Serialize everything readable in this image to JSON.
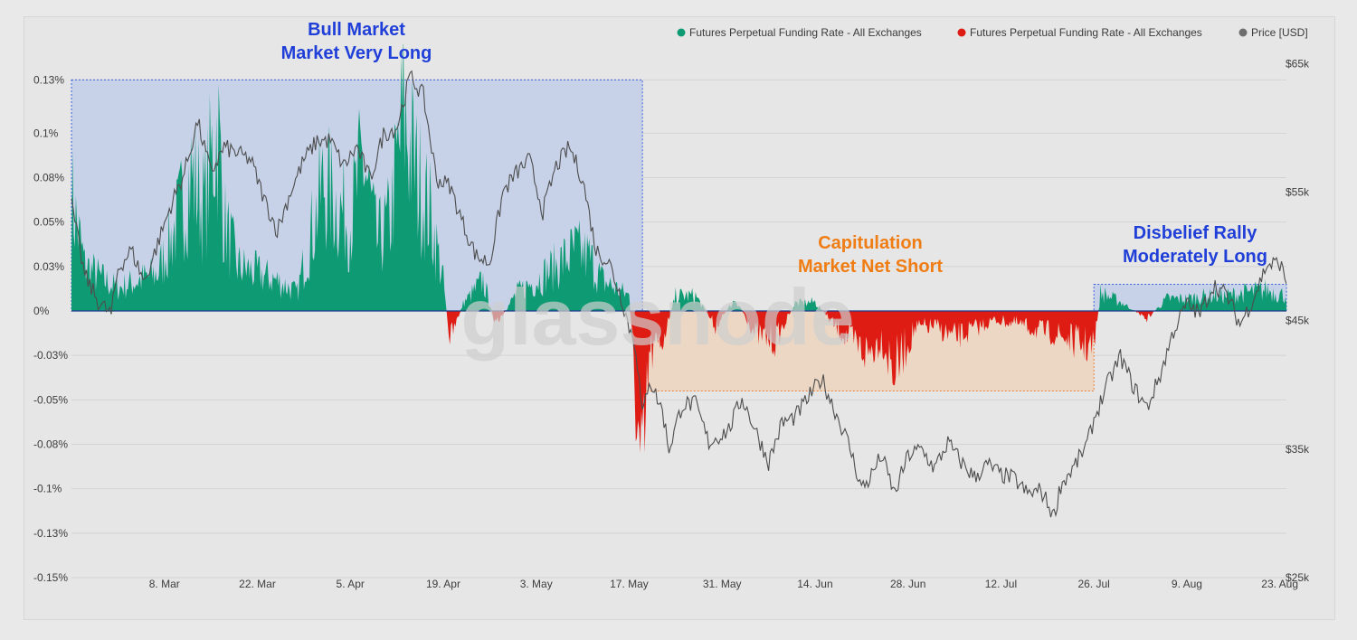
{
  "colors": {
    "green": "#0e9b73",
    "red": "#df1c14",
    "price": "#4d4d4d",
    "bull_box_fill": "#c5d1e8",
    "bull_box_border": "#3a62d8",
    "cap_box_fill": "#ecd6c3",
    "cap_box_border": "#e8843a",
    "bull_text": "#1f3fd8",
    "cap_text": "#f07d14",
    "watermark": "#cfcfcf"
  },
  "watermark": "glassnode",
  "legend": [
    {
      "label": "Futures Perpetual Funding Rate - All Exchanges",
      "color": "#0e9b73",
      "icon": "dot-icon"
    },
    {
      "label": "Futures Perpetual Funding Rate - All Exchanges",
      "color": "#df1c14",
      "icon": "dot-icon"
    },
    {
      "label": "Price [USD]",
      "color": "#6e6e6e",
      "icon": "dot-icon"
    }
  ],
  "annotations": {
    "bull": [
      "Bull Market",
      "Market Very Long"
    ],
    "capitulation": [
      "Capitulation",
      "Market Net Short"
    ],
    "disbelief": [
      "Disbelief Rally",
      "Moderately Long"
    ]
  },
  "chart_data": {
    "type": "area",
    "left_axis": {
      "tick_values": [
        0.13,
        0.1,
        0.075,
        0.05,
        0.025,
        0,
        -0.025,
        -0.05,
        -0.075,
        -0.1,
        -0.125,
        -0.15
      ],
      "tick_labels": [
        "0.13%",
        "0.1%",
        "0.08%",
        "0.05%",
        "0.03%",
        "0%",
        "-0.03%",
        "-0.05%",
        "-0.08%",
        "-0.1%",
        "-0.13%",
        "-0.15%"
      ],
      "range": [
        -0.15,
        0.15
      ]
    },
    "right_axis": {
      "tick_values": [
        65000,
        55000,
        45000,
        35000,
        25000
      ],
      "tick_labels": [
        "$65k",
        "$55k",
        "$45k",
        "$35k",
        "$25k"
      ],
      "range": [
        25000,
        66500
      ]
    },
    "x_axis": {
      "start": "2021-02-22",
      "end": "2021-08-24",
      "tick_labels": [
        "8. Mar",
        "22. Mar",
        "5. Apr",
        "19. Apr",
        "3. May",
        "17. May",
        "31. May",
        "14. Jun",
        "28. Jun",
        "12. Jul",
        "26. Jul",
        "9. Aug",
        "23. Aug"
      ]
    },
    "annotation_periods": [
      {
        "label": "Bull Market",
        "from": "2021-02-22",
        "to": "2021-05-19",
        "funding_range": [
          0,
          0.13
        ]
      },
      {
        "label": "Capitulation",
        "from": "2021-05-19",
        "to": "2021-07-26",
        "funding_range": [
          -0.045,
          0
        ]
      },
      {
        "label": "Disbelief Rally",
        "from": "2021-07-26",
        "to": "2021-08-24",
        "funding_range": [
          0,
          0.015
        ]
      }
    ],
    "funding_rate_pct": [
      [
        "2021-02-22",
        0.075
      ],
      [
        "2021-02-24",
        0.03
      ],
      [
        "2021-02-27",
        0.02
      ],
      [
        "2021-03-01",
        0.015
      ],
      [
        "2021-03-04",
        0.02
      ],
      [
        "2021-03-07",
        0.025
      ],
      [
        "2021-03-10",
        0.06
      ],
      [
        "2021-03-12",
        0.09
      ],
      [
        "2021-03-14",
        0.07
      ],
      [
        "2021-03-16",
        0.125
      ],
      [
        "2021-03-17",
        0.06
      ],
      [
        "2021-03-19",
        0.03
      ],
      [
        "2021-03-22",
        0.025
      ],
      [
        "2021-03-25",
        0.02
      ],
      [
        "2021-03-28",
        0.012
      ],
      [
        "2021-03-30",
        0.05
      ],
      [
        "2021-04-01",
        0.085
      ],
      [
        "2021-04-03",
        0.07
      ],
      [
        "2021-04-05",
        0.06
      ],
      [
        "2021-04-07",
        0.1
      ],
      [
        "2021-04-09",
        0.045
      ],
      [
        "2021-04-11",
        0.06
      ],
      [
        "2021-04-13",
        0.13
      ],
      [
        "2021-04-15",
        0.09
      ],
      [
        "2021-04-17",
        0.065
      ],
      [
        "2021-04-19",
        0.02
      ],
      [
        "2021-04-20",
        -0.02
      ],
      [
        "2021-04-22",
        0.005
      ],
      [
        "2021-04-25",
        0.02
      ],
      [
        "2021-04-27",
        -0.01
      ],
      [
        "2021-04-30",
        0.012
      ],
      [
        "2021-05-03",
        0.02
      ],
      [
        "2021-05-06",
        0.03
      ],
      [
        "2021-05-09",
        0.04
      ],
      [
        "2021-05-11",
        0.035
      ],
      [
        "2021-05-13",
        0.02
      ],
      [
        "2021-05-15",
        0.015
      ],
      [
        "2021-05-17",
        0.01
      ],
      [
        "2021-05-19",
        -0.13
      ],
      [
        "2021-05-20",
        -0.03
      ],
      [
        "2021-05-22",
        -0.02
      ],
      [
        "2021-05-24",
        0.01
      ],
      [
        "2021-05-27",
        0.01
      ],
      [
        "2021-05-30",
        -0.01
      ],
      [
        "2021-06-02",
        0.008
      ],
      [
        "2021-06-05",
        -0.015
      ],
      [
        "2021-06-08",
        -0.02
      ],
      [
        "2021-06-11",
        0.005
      ],
      [
        "2021-06-14",
        0.006
      ],
      [
        "2021-06-17",
        -0.01
      ],
      [
        "2021-06-20",
        -0.022
      ],
      [
        "2021-06-22",
        -0.028
      ],
      [
        "2021-06-24",
        -0.018
      ],
      [
        "2021-06-26",
        -0.04
      ],
      [
        "2021-06-29",
        -0.012
      ],
      [
        "2021-07-02",
        -0.01
      ],
      [
        "2021-07-05",
        -0.018
      ],
      [
        "2021-07-08",
        -0.012
      ],
      [
        "2021-07-11",
        -0.006
      ],
      [
        "2021-07-14",
        -0.008
      ],
      [
        "2021-07-17",
        -0.012
      ],
      [
        "2021-07-20",
        -0.015
      ],
      [
        "2021-07-23",
        -0.02
      ],
      [
        "2021-07-26",
        -0.025
      ],
      [
        "2021-07-27",
        0.012
      ],
      [
        "2021-07-30",
        0.006
      ],
      [
        "2021-08-03",
        -0.005
      ],
      [
        "2021-08-06",
        0.008
      ],
      [
        "2021-08-09",
        0.008
      ],
      [
        "2021-08-12",
        0.01
      ],
      [
        "2021-08-15",
        0.01
      ],
      [
        "2021-08-18",
        0.012
      ],
      [
        "2021-08-21",
        0.014
      ],
      [
        "2021-08-24",
        0.01
      ]
    ],
    "price_usd": [
      [
        "2021-02-22",
        54000
      ],
      [
        "2021-02-24",
        48500
      ],
      [
        "2021-02-26",
        46500
      ],
      [
        "2021-02-28",
        45500
      ],
      [
        "2021-03-01",
        49000
      ],
      [
        "2021-03-03",
        50500
      ],
      [
        "2021-03-05",
        48000
      ],
      [
        "2021-03-07",
        51000
      ],
      [
        "2021-03-09",
        54000
      ],
      [
        "2021-03-11",
        56500
      ],
      [
        "2021-03-13",
        60500
      ],
      [
        "2021-03-15",
        56500
      ],
      [
        "2021-03-17",
        58500
      ],
      [
        "2021-03-19",
        58000
      ],
      [
        "2021-03-21",
        57500
      ],
      [
        "2021-03-23",
        54500
      ],
      [
        "2021-03-25",
        52000
      ],
      [
        "2021-03-27",
        55000
      ],
      [
        "2021-03-29",
        57500
      ],
      [
        "2021-03-31",
        59000
      ],
      [
        "2021-04-02",
        59000
      ],
      [
        "2021-04-04",
        57000
      ],
      [
        "2021-04-06",
        58500
      ],
      [
        "2021-04-08",
        56000
      ],
      [
        "2021-04-10",
        59500
      ],
      [
        "2021-04-12",
        60000
      ],
      [
        "2021-04-14",
        64000
      ],
      [
        "2021-04-16",
        62500
      ],
      [
        "2021-04-18",
        56000
      ],
      [
        "2021-04-20",
        55500
      ],
      [
        "2021-04-22",
        52500
      ],
      [
        "2021-04-24",
        50000
      ],
      [
        "2021-04-26",
        49500
      ],
      [
        "2021-04-28",
        55000
      ],
      [
        "2021-04-30",
        56500
      ],
      [
        "2021-05-02",
        57500
      ],
      [
        "2021-05-04",
        53500
      ],
      [
        "2021-05-06",
        57000
      ],
      [
        "2021-05-08",
        58500
      ],
      [
        "2021-05-10",
        56000
      ],
      [
        "2021-05-12",
        50500
      ],
      [
        "2021-05-14",
        49500
      ],
      [
        "2021-05-16",
        46500
      ],
      [
        "2021-05-17",
        44500
      ],
      [
        "2021-05-18",
        43000
      ],
      [
        "2021-05-19",
        37500
      ],
      [
        "2021-05-20",
        40500
      ],
      [
        "2021-05-22",
        38000
      ],
      [
        "2021-05-23",
        35000
      ],
      [
        "2021-05-25",
        38500
      ],
      [
        "2021-05-27",
        38500
      ],
      [
        "2021-05-29",
        35500
      ],
      [
        "2021-06-01",
        36500
      ],
      [
        "2021-06-03",
        39000
      ],
      [
        "2021-06-05",
        36500
      ],
      [
        "2021-06-07",
        34000
      ],
      [
        "2021-06-09",
        37000
      ],
      [
        "2021-06-11",
        37500
      ],
      [
        "2021-06-13",
        39000
      ],
      [
        "2021-06-15",
        40500
      ],
      [
        "2021-06-17",
        38000
      ],
      [
        "2021-06-19",
        35500
      ],
      [
        "2021-06-21",
        32000
      ],
      [
        "2021-06-22",
        32500
      ],
      [
        "2021-06-24",
        34500
      ],
      [
        "2021-06-26",
        31500
      ],
      [
        "2021-06-28",
        34500
      ],
      [
        "2021-06-30",
        35000
      ],
      [
        "2021-07-02",
        33500
      ],
      [
        "2021-07-04",
        35500
      ],
      [
        "2021-07-06",
        34000
      ],
      [
        "2021-07-08",
        32800
      ],
      [
        "2021-07-10",
        33800
      ],
      [
        "2021-07-12",
        33000
      ],
      [
        "2021-07-14",
        32700
      ],
      [
        "2021-07-16",
        31500
      ],
      [
        "2021-07-18",
        31800
      ],
      [
        "2021-07-20",
        29800
      ],
      [
        "2021-07-21",
        32200
      ],
      [
        "2021-07-23",
        33600
      ],
      [
        "2021-07-25",
        35400
      ],
      [
        "2021-07-26",
        37300
      ],
      [
        "2021-07-28",
        40000
      ],
      [
        "2021-07-30",
        42200
      ],
      [
        "2021-08-01",
        39800
      ],
      [
        "2021-08-03",
        38200
      ],
      [
        "2021-08-05",
        40800
      ],
      [
        "2021-08-07",
        44200
      ],
      [
        "2021-08-09",
        46300
      ],
      [
        "2021-08-11",
        45500
      ],
      [
        "2021-08-13",
        47800
      ],
      [
        "2021-08-15",
        47000
      ],
      [
        "2021-08-17",
        44700
      ],
      [
        "2021-08-19",
        46700
      ],
      [
        "2021-08-21",
        49300
      ],
      [
        "2021-08-23",
        49500
      ],
      [
        "2021-08-24",
        48000
      ]
    ]
  }
}
